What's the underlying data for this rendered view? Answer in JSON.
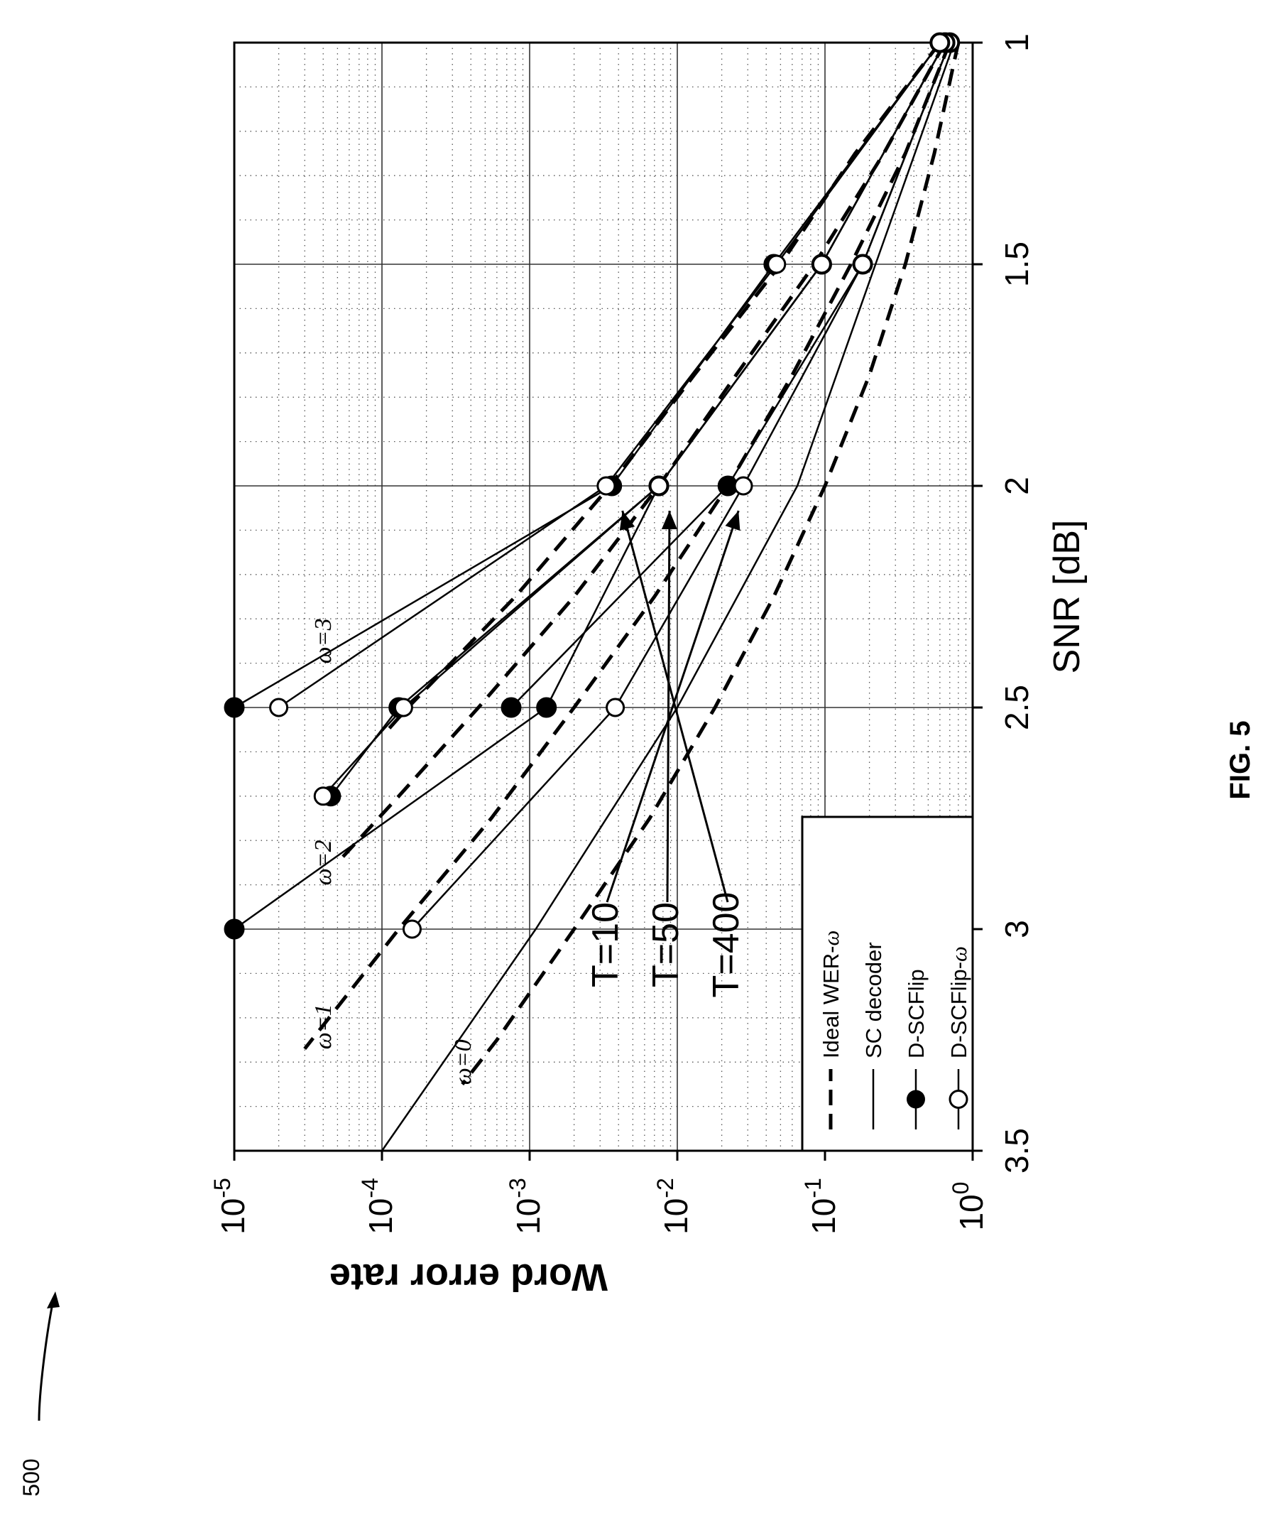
{
  "figure_label": "FIG. 5",
  "reference_numeral": "500",
  "chart_data": {
    "type": "line",
    "xlabel": "SNR [dB]",
    "ylabel": "Word error rate",
    "xlim": [
      1,
      3.5
    ],
    "ylim": [
      1e-05,
      1
    ],
    "yscale": "log",
    "grid": true,
    "x_ticks": [
      "1",
      "1.5",
      "2",
      "2.5",
      "3",
      "3.5"
    ],
    "y_ticks": [
      {
        "base": "10",
        "exp": "0"
      },
      {
        "base": "10",
        "exp": "-1"
      },
      {
        "base": "10",
        "exp": "-2"
      },
      {
        "base": "10",
        "exp": "-3"
      },
      {
        "base": "10",
        "exp": "-4"
      },
      {
        "base": "10",
        "exp": "-5"
      }
    ],
    "legend": {
      "placement": "bottom-left",
      "entries": [
        {
          "label": "Ideal WER-",
          "symbol": "ω",
          "style": "dashed"
        },
        {
          "label": "SC decoder",
          "symbol": "",
          "style": "solid"
        },
        {
          "label": "D-SCFlip",
          "symbol": "",
          "style": "filled-marker"
        },
        {
          "label": "D-SCFlip-",
          "symbol": "ω",
          "style": "open-marker"
        }
      ]
    },
    "series": [
      {
        "style": "dashed",
        "x": [
          1,
          1.25,
          1.5,
          1.75,
          2,
          2.25,
          2.5,
          2.75,
          3,
          3.25,
          3.35
        ],
        "y": [
          0.8,
          0.55,
          0.35,
          0.2,
          0.1,
          0.045,
          0.018,
          0.0065,
          0.002,
          0.0006,
          0.00035
        ]
      },
      {
        "style": "solid",
        "x": [
          1,
          1.5,
          2,
          2.5,
          3,
          3.5
        ],
        "y": [
          0.75,
          0.22,
          0.065,
          0.01,
          0.0011,
          0.0001
        ]
      },
      {
        "style": "dashed",
        "x": [
          1,
          1.25,
          1.5,
          1.75,
          2,
          2.25,
          2.5,
          2.75,
          3,
          3.27
        ],
        "y": [
          0.7,
          0.35,
          0.15,
          0.06,
          0.022,
          0.007,
          0.002,
          0.00055,
          0.00013,
          3e-05
        ]
      },
      {
        "style": "dashed",
        "x": [
          1,
          1.25,
          1.5,
          1.75,
          2,
          2.25,
          2.5,
          2.7,
          2.85
        ],
        "y": [
          0.65,
          0.25,
          0.085,
          0.025,
          0.0075,
          0.002,
          0.00045,
          0.00013,
          5e-05
        ]
      },
      {
        "style": "dashed",
        "x": [
          1,
          1.25,
          1.5,
          1.75,
          2,
          2.25,
          2.5,
          2.55
        ],
        "y": [
          0.6,
          0.16,
          0.05,
          0.013,
          0.0035,
          0.0008,
          0.00015,
          0.00011
        ]
      },
      {
        "style": "filled",
        "x": [
          1,
          1.5,
          2,
          2.5
        ],
        "y": [
          0.7,
          0.18,
          0.022,
          0.00075
        ]
      },
      {
        "style": "open",
        "x": [
          1,
          1.5,
          2,
          2.5,
          3
        ],
        "y": [
          0.7,
          0.18,
          0.028,
          0.0038,
          0.00016
        ]
      },
      {
        "style": "filled",
        "x": [
          1,
          1.5,
          2,
          2.5,
          3
        ],
        "y": [
          0.65,
          0.095,
          0.0075,
          0.0013,
          1e-05
        ]
      },
      {
        "style": "filled",
        "x": [
          1,
          1.5,
          2,
          2.5,
          2.7
        ],
        "y": [
          0.65,
          0.095,
          0.0075,
          0.00013,
          4.5e-05
        ]
      },
      {
        "style": "open",
        "x": [
          1,
          1.5,
          2,
          2.5,
          2.7
        ],
        "y": [
          0.65,
          0.095,
          0.0075,
          0.00014,
          4e-05
        ]
      },
      {
        "style": "filled",
        "x": [
          1,
          1.5,
          2,
          2.5
        ],
        "y": [
          0.6,
          0.045,
          0.0036,
          1e-05
        ]
      },
      {
        "style": "open",
        "x": [
          1,
          1.5,
          2,
          2.5
        ],
        "y": [
          0.6,
          0.047,
          0.0033,
          2e-05
        ]
      }
    ],
    "curve_labels": [
      {
        "text": "ω=0",
        "x": 3.3,
        "y": 0.0004
      },
      {
        "text": "ω=1",
        "x": 3.22,
        "y": 4.5e-05
      },
      {
        "text": "ω=2",
        "x": 2.85,
        "y": 4.5e-05
      },
      {
        "text": "ω=3",
        "x": 2.35,
        "y": 4.5e-05
      }
    ],
    "annotations": [
      {
        "text": "T=10",
        "target_x": 2.0,
        "target_y": 0.022
      },
      {
        "text": "T=50",
        "target_x": 2.0,
        "target_y": 0.0075
      },
      {
        "text": "T=400",
        "target_x": 2.0,
        "target_y": 0.0036
      }
    ]
  }
}
